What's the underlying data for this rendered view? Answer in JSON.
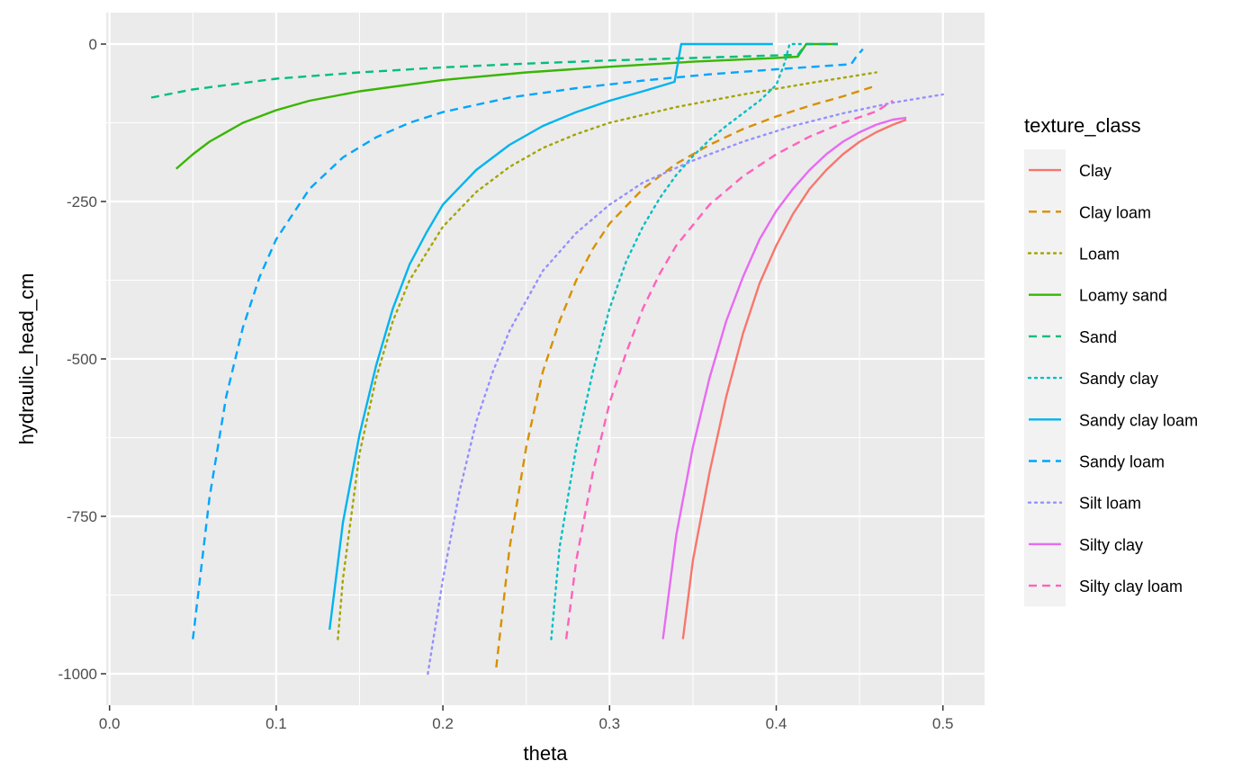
{
  "chart_data": {
    "type": "line",
    "xlabel": "theta",
    "ylabel": "hydraulic_head_cm",
    "xlim": [
      -0.002,
      0.525
    ],
    "ylim": [
      -1050,
      50
    ],
    "x_ticks": [
      0.0,
      0.1,
      0.2,
      0.3,
      0.4,
      0.5
    ],
    "x_tick_labels": [
      "0.0",
      "0.1",
      "0.2",
      "0.3",
      "0.4",
      "0.5"
    ],
    "y_ticks": [
      0,
      -250,
      -500,
      -750,
      -1000
    ],
    "y_tick_labels": [
      "0",
      "-250",
      "-500",
      "-750",
      "-1000"
    ],
    "grid": true,
    "legend_title": "texture_class",
    "legend_position": "right",
    "series": [
      {
        "name": "Clay",
        "color": "#F8766D",
        "dash": "solid",
        "points": [
          [
            0.344,
            -945
          ],
          [
            0.35,
            -820
          ],
          [
            0.36,
            -680
          ],
          [
            0.37,
            -560
          ],
          [
            0.38,
            -460
          ],
          [
            0.39,
            -380
          ],
          [
            0.4,
            -320
          ],
          [
            0.41,
            -270
          ],
          [
            0.42,
            -230
          ],
          [
            0.43,
            -200
          ],
          [
            0.44,
            -175
          ],
          [
            0.45,
            -155
          ],
          [
            0.46,
            -140
          ],
          [
            0.47,
            -128
          ],
          [
            0.478,
            -120
          ]
        ]
      },
      {
        "name": "Clay loam",
        "color": "#D89000",
        "dash": "longdash",
        "points": [
          [
            0.232,
            -990
          ],
          [
            0.24,
            -800
          ],
          [
            0.25,
            -640
          ],
          [
            0.26,
            -520
          ],
          [
            0.27,
            -440
          ],
          [
            0.28,
            -375
          ],
          [
            0.29,
            -325
          ],
          [
            0.3,
            -285
          ],
          [
            0.32,
            -230
          ],
          [
            0.34,
            -190
          ],
          [
            0.36,
            -160
          ],
          [
            0.38,
            -135
          ],
          [
            0.4,
            -115
          ],
          [
            0.42,
            -98
          ],
          [
            0.44,
            -83
          ],
          [
            0.46,
            -66
          ]
        ]
      },
      {
        "name": "Loam",
        "color": "#A3A500",
        "dash": "dotted",
        "points": [
          [
            0.137,
            -945
          ],
          [
            0.14,
            -850
          ],
          [
            0.15,
            -650
          ],
          [
            0.16,
            -530
          ],
          [
            0.17,
            -440
          ],
          [
            0.18,
            -375
          ],
          [
            0.2,
            -290
          ],
          [
            0.22,
            -235
          ],
          [
            0.24,
            -195
          ],
          [
            0.26,
            -165
          ],
          [
            0.28,
            -143
          ],
          [
            0.3,
            -125
          ],
          [
            0.34,
            -100
          ],
          [
            0.38,
            -80
          ],
          [
            0.42,
            -62
          ],
          [
            0.46,
            -45
          ]
        ]
      },
      {
        "name": "Loamy sand",
        "color": "#39B600",
        "dash": "solid",
        "points": [
          [
            0.04,
            -198
          ],
          [
            0.05,
            -175
          ],
          [
            0.06,
            -155
          ],
          [
            0.08,
            -125
          ],
          [
            0.1,
            -105
          ],
          [
            0.12,
            -90
          ],
          [
            0.15,
            -75
          ],
          [
            0.2,
            -57
          ],
          [
            0.25,
            -45
          ],
          [
            0.3,
            -36
          ],
          [
            0.35,
            -28
          ],
          [
            0.4,
            -22
          ],
          [
            0.413,
            -20
          ],
          [
            0.418,
            0
          ],
          [
            0.437,
            0
          ]
        ]
      },
      {
        "name": "Sand",
        "color": "#00BF7D",
        "dash": "longdash",
        "points": [
          [
            0.025,
            -85
          ],
          [
            0.05,
            -72
          ],
          [
            0.1,
            -55
          ],
          [
            0.15,
            -45
          ],
          [
            0.2,
            -37
          ],
          [
            0.25,
            -31
          ],
          [
            0.3,
            -26
          ],
          [
            0.35,
            -22
          ],
          [
            0.4,
            -18
          ],
          [
            0.413,
            -17
          ],
          [
            0.418,
            0
          ],
          [
            0.437,
            0
          ]
        ]
      },
      {
        "name": "Sandy clay",
        "color": "#00BFC4",
        "dash": "dotted",
        "points": [
          [
            0.265,
            -945
          ],
          [
            0.27,
            -800
          ],
          [
            0.28,
            -640
          ],
          [
            0.29,
            -520
          ],
          [
            0.3,
            -420
          ],
          [
            0.31,
            -345
          ],
          [
            0.32,
            -290
          ],
          [
            0.33,
            -245
          ],
          [
            0.34,
            -208
          ],
          [
            0.35,
            -178
          ],
          [
            0.36,
            -152
          ],
          [
            0.37,
            -130
          ],
          [
            0.38,
            -110
          ],
          [
            0.39,
            -90
          ],
          [
            0.4,
            -65
          ],
          [
            0.405,
            -30
          ],
          [
            0.408,
            0
          ],
          [
            0.415,
            0
          ]
        ]
      },
      {
        "name": "Sandy clay loam",
        "color": "#00B4EF",
        "dash": "solid",
        "points": [
          [
            0.132,
            -930
          ],
          [
            0.14,
            -760
          ],
          [
            0.15,
            -620
          ],
          [
            0.16,
            -510
          ],
          [
            0.17,
            -420
          ],
          [
            0.18,
            -350
          ],
          [
            0.19,
            -300
          ],
          [
            0.2,
            -255
          ],
          [
            0.22,
            -200
          ],
          [
            0.24,
            -160
          ],
          [
            0.26,
            -130
          ],
          [
            0.28,
            -108
          ],
          [
            0.3,
            -90
          ],
          [
            0.32,
            -75
          ],
          [
            0.339,
            -60
          ],
          [
            0.343,
            0
          ],
          [
            0.398,
            0
          ]
        ]
      },
      {
        "name": "Sandy loam",
        "color": "#00A5FF",
        "dash": "longdash",
        "points": [
          [
            0.05,
            -945
          ],
          [
            0.06,
            -720
          ],
          [
            0.07,
            -560
          ],
          [
            0.08,
            -450
          ],
          [
            0.09,
            -370
          ],
          [
            0.1,
            -310
          ],
          [
            0.12,
            -230
          ],
          [
            0.14,
            -180
          ],
          [
            0.16,
            -148
          ],
          [
            0.18,
            -125
          ],
          [
            0.2,
            -108
          ],
          [
            0.24,
            -85
          ],
          [
            0.28,
            -70
          ],
          [
            0.32,
            -58
          ],
          [
            0.36,
            -48
          ],
          [
            0.4,
            -40
          ],
          [
            0.445,
            -32
          ],
          [
            0.448,
            -20
          ],
          [
            0.452,
            -8
          ]
        ]
      },
      {
        "name": "Silt loam",
        "color": "#9590FF",
        "dash": "dotted",
        "points": [
          [
            0.191,
            -1000
          ],
          [
            0.2,
            -850
          ],
          [
            0.21,
            -710
          ],
          [
            0.22,
            -600
          ],
          [
            0.23,
            -520
          ],
          [
            0.24,
            -455
          ],
          [
            0.26,
            -360
          ],
          [
            0.28,
            -300
          ],
          [
            0.3,
            -255
          ],
          [
            0.32,
            -220
          ],
          [
            0.35,
            -185
          ],
          [
            0.38,
            -155
          ],
          [
            0.41,
            -130
          ],
          [
            0.44,
            -110
          ],
          [
            0.47,
            -93
          ],
          [
            0.5,
            -80
          ]
        ]
      },
      {
        "name": "Silty clay",
        "color": "#E76BF3",
        "dash": "solid",
        "points": [
          [
            0.332,
            -945
          ],
          [
            0.34,
            -780
          ],
          [
            0.35,
            -640
          ],
          [
            0.36,
            -530
          ],
          [
            0.37,
            -440
          ],
          [
            0.38,
            -370
          ],
          [
            0.39,
            -310
          ],
          [
            0.4,
            -265
          ],
          [
            0.41,
            -230
          ],
          [
            0.42,
            -200
          ],
          [
            0.43,
            -175
          ],
          [
            0.44,
            -155
          ],
          [
            0.45,
            -140
          ],
          [
            0.46,
            -128
          ],
          [
            0.47,
            -120
          ],
          [
            0.478,
            -117
          ]
        ]
      },
      {
        "name": "Silty clay loam",
        "color": "#FF62BC",
        "dash": "longdash",
        "points": [
          [
            0.274,
            -945
          ],
          [
            0.28,
            -820
          ],
          [
            0.29,
            -680
          ],
          [
            0.3,
            -570
          ],
          [
            0.31,
            -490
          ],
          [
            0.32,
            -420
          ],
          [
            0.33,
            -365
          ],
          [
            0.34,
            -320
          ],
          [
            0.36,
            -255
          ],
          [
            0.38,
            -210
          ],
          [
            0.4,
            -175
          ],
          [
            0.42,
            -147
          ],
          [
            0.44,
            -125
          ],
          [
            0.46,
            -107
          ],
          [
            0.47,
            -90
          ]
        ]
      }
    ]
  }
}
